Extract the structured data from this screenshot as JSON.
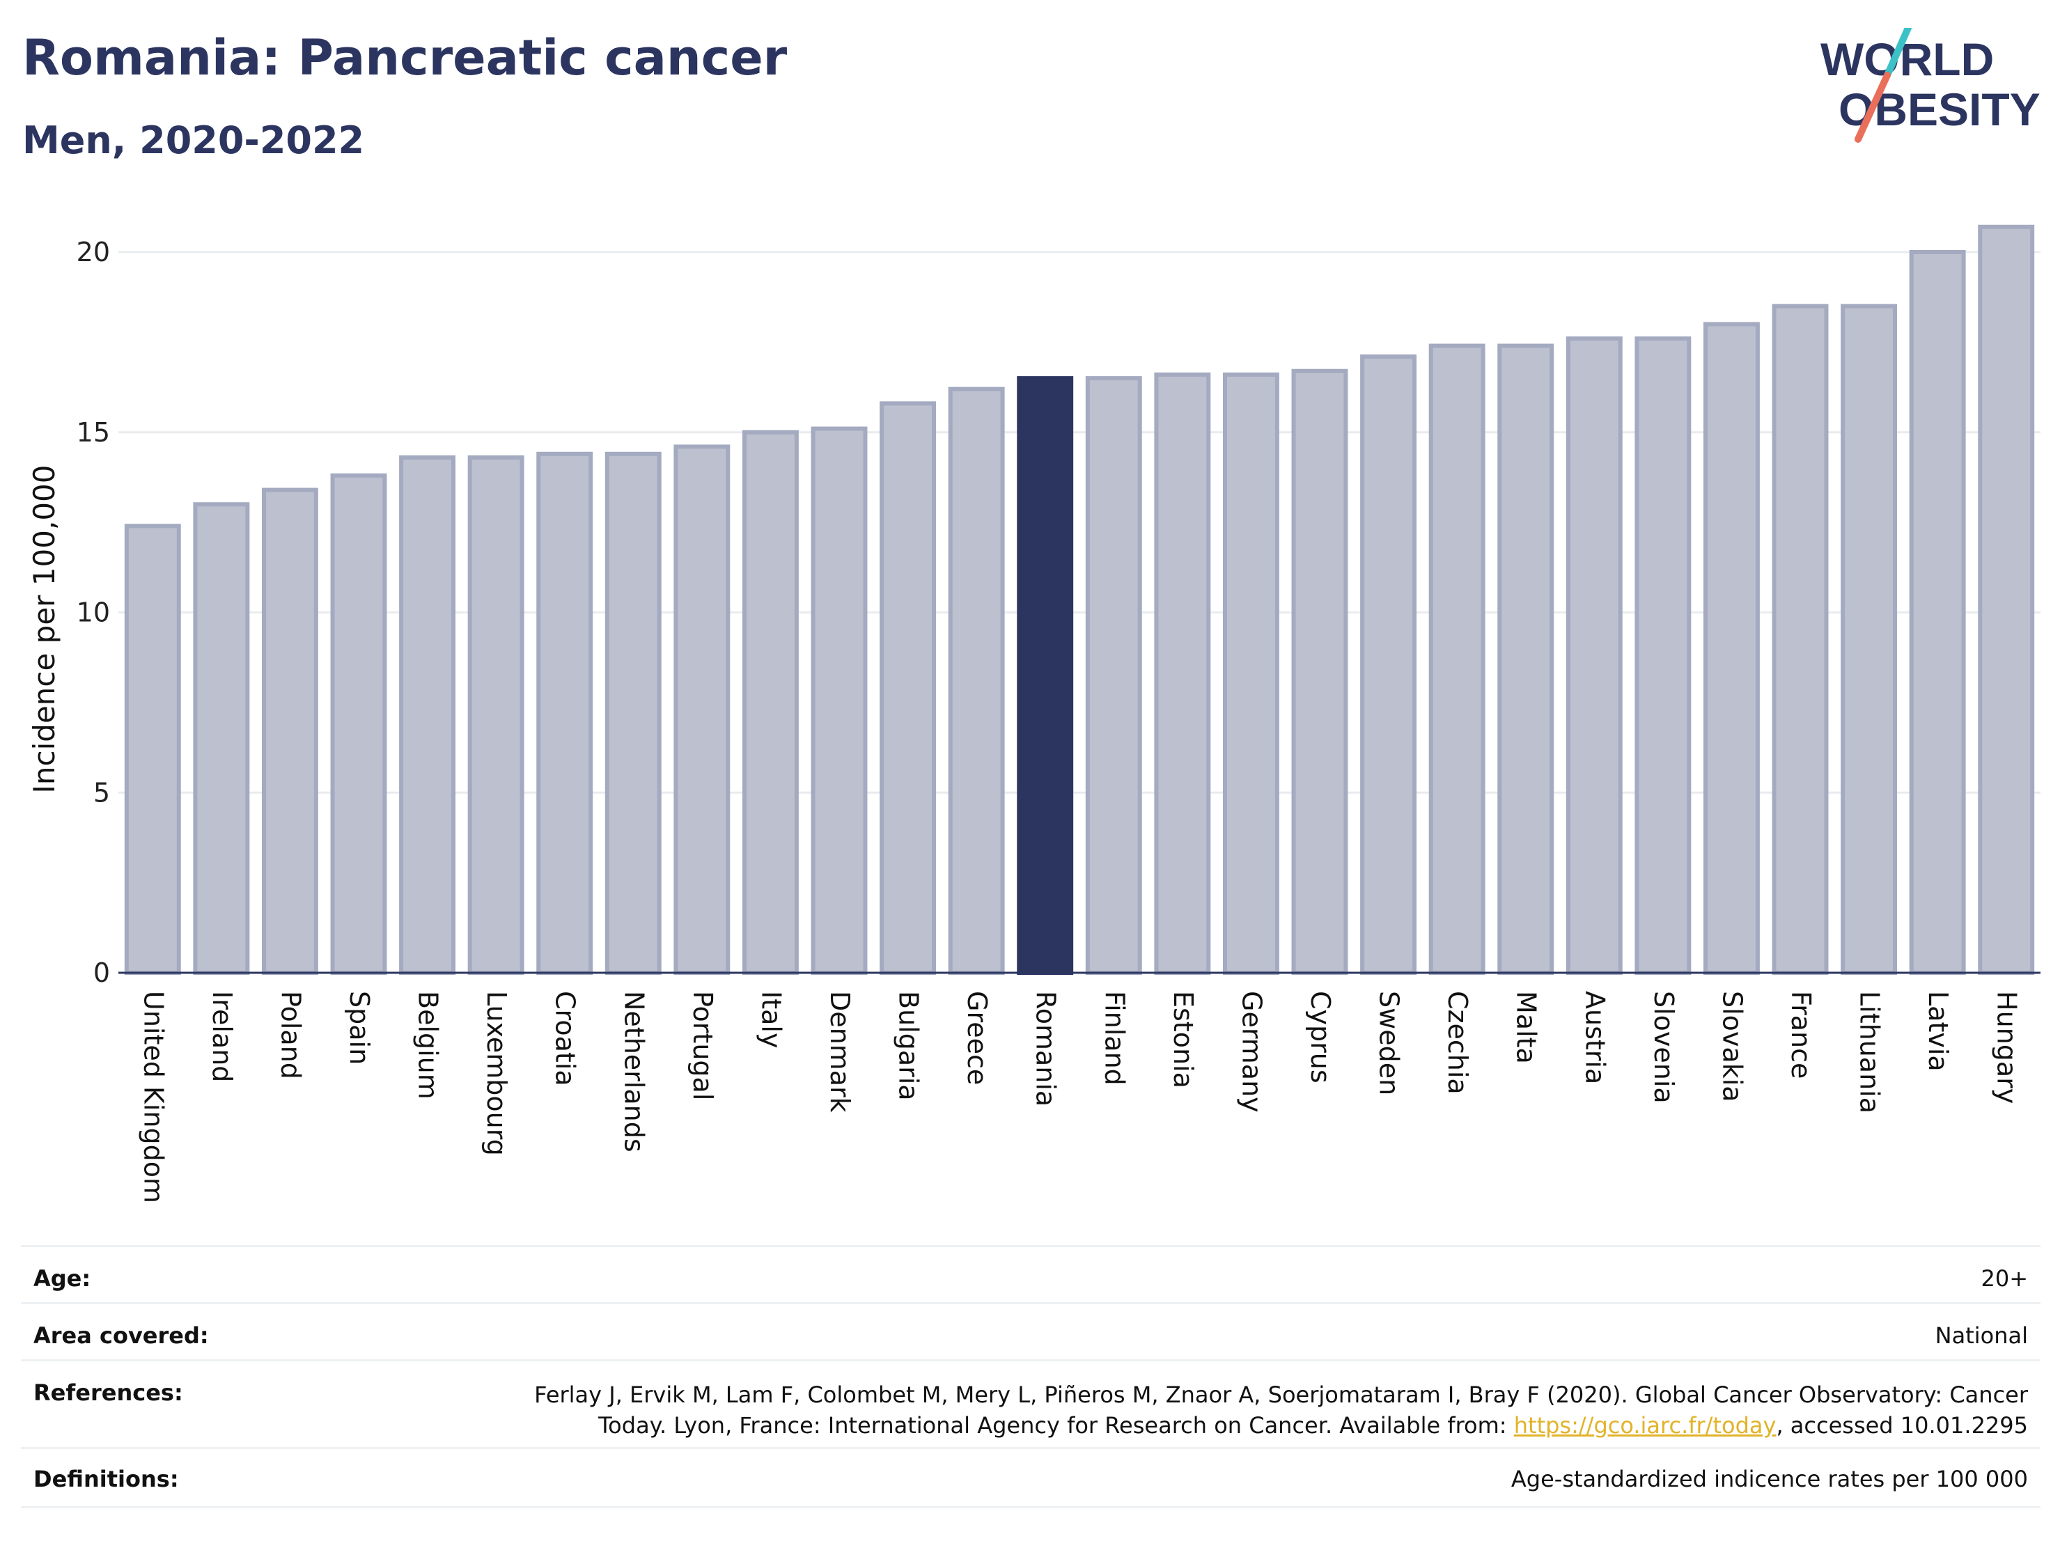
{
  "header": {
    "title": "Romania: Pancreatic cancer",
    "subtitle": "Men, 2020-2022"
  },
  "logo": {
    "line1": "WORLD",
    "line2": "OBESITY"
  },
  "colors": {
    "bar_default": "#bcc0cf",
    "bar_default_edge": "#a4aac0",
    "bar_highlight": "#2c3560",
    "text_title": "#2c3560",
    "logo_slash_top": "#3cc1c7",
    "logo_slash_bottom": "#ea6f5a",
    "link": "#e2b32a"
  },
  "chart_data": {
    "type": "bar",
    "title": "Romania: Pancreatic cancer",
    "subtitle": "Men, 2020-2022",
    "ylabel": "Incidence per 100,000",
    "xlabel": "",
    "ylim": [
      0,
      21
    ],
    "yticks": [
      0,
      5,
      10,
      15,
      20
    ],
    "grid": true,
    "highlight": "Romania",
    "categories": [
      "United Kingdom",
      "Ireland",
      "Poland",
      "Spain",
      "Belgium",
      "Luxembourg",
      "Croatia",
      "Netherlands",
      "Portugal",
      "Italy",
      "Denmark",
      "Bulgaria",
      "Greece",
      "Romania",
      "Finland",
      "Estonia",
      "Germany",
      "Cyprus",
      "Sweden",
      "Czechia",
      "Malta",
      "Austria",
      "Slovenia",
      "Slovakia",
      "France",
      "Lithuania",
      "Latvia",
      "Hungary"
    ],
    "values": [
      12.4,
      13.0,
      13.4,
      13.8,
      14.3,
      14.3,
      14.4,
      14.4,
      14.6,
      15.0,
      15.1,
      15.8,
      16.2,
      16.5,
      16.5,
      16.6,
      16.6,
      16.7,
      17.1,
      17.4,
      17.4,
      17.6,
      17.6,
      18.0,
      18.5,
      18.5,
      20.0,
      20.7
    ]
  },
  "meta": {
    "age": {
      "label": "Age:",
      "value": "20+"
    },
    "area": {
      "label": "Area covered:",
      "value": "National"
    },
    "references": {
      "label": "References:",
      "line1": "Ferlay J, Ervik M, Lam F, Colombet M, Mery L, Piñeros M, Znaor A, Soerjomataram I, Bray F (2020). Global Cancer Observatory: Cancer",
      "line2_prefix": "Today. Lyon, France: International Agency for Research on Cancer. Available from: ",
      "link": "https://gco.iarc.fr/today",
      "line2_suffix": ", accessed 10.01.2295"
    },
    "definitions": {
      "label": "Definitions:",
      "value": "Age-standardized indicence rates per 100 000"
    }
  }
}
